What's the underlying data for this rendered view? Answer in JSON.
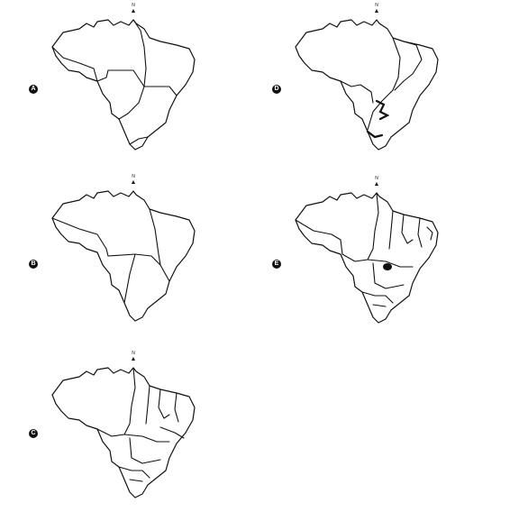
{
  "panels": [
    {
      "id": "A",
      "label": "A",
      "north_label": "N",
      "division": "five regions"
    },
    {
      "id": "B",
      "label": "B",
      "north_label": "N",
      "division": "four regions"
    },
    {
      "id": "C",
      "label": "C",
      "north_label": "N",
      "division": "states"
    },
    {
      "id": "D",
      "label": "D",
      "north_label": "N",
      "division": "regions with rivers"
    },
    {
      "id": "E",
      "label": "E",
      "north_label": "N",
      "division": "states with federal district"
    }
  ],
  "colors": {
    "stroke": "#111111",
    "background": "#ffffff",
    "badge": "#111111"
  },
  "icons": {
    "north": "north-arrow-icon",
    "label": "circle-letter-badge"
  }
}
